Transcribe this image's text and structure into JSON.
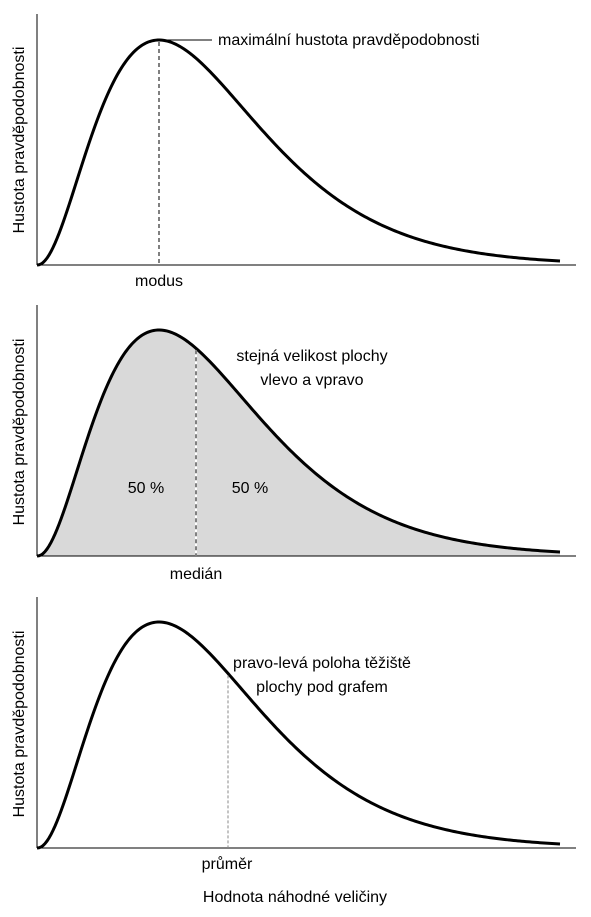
{
  "panels": [
    {
      "id": "modus",
      "ylabel": "Hustota pravděpodobnosti",
      "marker_label": "modus",
      "annotation": [
        "maximální hustota pravděpodobnosti"
      ]
    },
    {
      "id": "median",
      "ylabel": "Hustota pravděpodobnosti",
      "marker_label": "medián",
      "annotation": [
        "stejná velikost plochy",
        "vlevo a vpravo"
      ],
      "left_area": "50 %",
      "right_area": "50 %"
    },
    {
      "id": "mean",
      "ylabel": "Hustota pravděpodobnosti",
      "marker_label": "průměr",
      "annotation": [
        "pravo-levá poloha těžiště",
        "plochy pod grafem"
      ]
    }
  ],
  "xlabel": "Hodnota náhodné veličiny",
  "colors": {
    "curve": "#000000",
    "fill": "#d9d9d9"
  }
}
